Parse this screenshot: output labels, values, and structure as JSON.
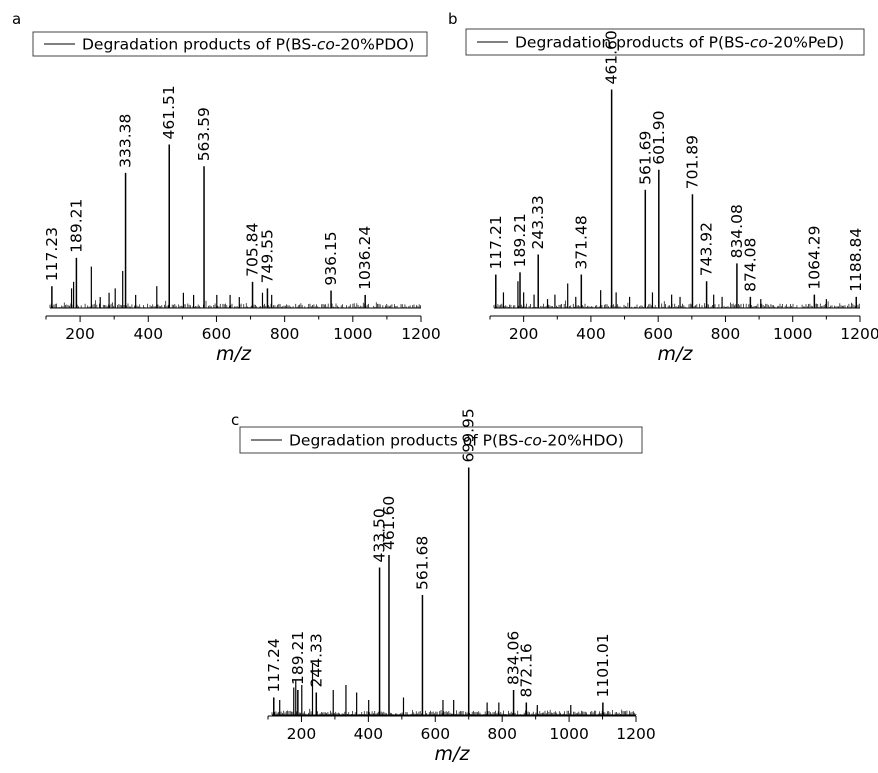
{
  "chart_data": [
    {
      "type": "line",
      "panel_label": "a",
      "legend": {
        "prefix": "Degradation products of P",
        "paren_open": "(",
        "segments": [
          {
            "text": "BS-",
            "italic": false
          },
          {
            "text": "co",
            "italic": true
          },
          {
            "text": "-20%PDO",
            "italic": false
          }
        ],
        "paren_close": ")"
      },
      "xlabel": "m/z",
      "xlim": [
        100,
        1200
      ],
      "xticks": [
        200,
        400,
        600,
        800,
        1000,
        1200
      ],
      "ylim": [
        0,
        100
      ],
      "peaks": [
        {
          "x": 117.23,
          "y": 10,
          "label": "117.23"
        },
        {
          "x": 189.21,
          "y": 23,
          "label": "189.21"
        },
        {
          "x": 333.38,
          "y": 62,
          "label": "333.38"
        },
        {
          "x": 461.51,
          "y": 75,
          "label": "461.51"
        },
        {
          "x": 563.59,
          "y": 65,
          "label": "563.59"
        },
        {
          "x": 705.84,
          "y": 12,
          "label": "705.84"
        },
        {
          "x": 749.55,
          "y": 9,
          "label": "749.55"
        },
        {
          "x": 936.15,
          "y": 8,
          "label": "936.15"
        },
        {
          "x": 1036.24,
          "y": 6,
          "label": "1036.24"
        }
      ],
      "minor_peaks": [
        {
          "x": 175,
          "y": 9
        },
        {
          "x": 181,
          "y": 12
        },
        {
          "x": 233,
          "y": 19
        },
        {
          "x": 259,
          "y": 5
        },
        {
          "x": 285,
          "y": 7
        },
        {
          "x": 303,
          "y": 9
        },
        {
          "x": 325,
          "y": 17
        },
        {
          "x": 363,
          "y": 6
        },
        {
          "x": 425,
          "y": 10
        },
        {
          "x": 503,
          "y": 7
        },
        {
          "x": 533,
          "y": 6
        },
        {
          "x": 601,
          "y": 6
        },
        {
          "x": 640,
          "y": 6
        },
        {
          "x": 667,
          "y": 5
        },
        {
          "x": 735,
          "y": 7
        },
        {
          "x": 762,
          "y": 6
        }
      ]
    },
    {
      "type": "line",
      "panel_label": "b",
      "legend": {
        "prefix": "Degradation products of P",
        "paren_open": "(",
        "segments": [
          {
            "text": "BS-",
            "italic": false
          },
          {
            "text": "co",
            "italic": true
          },
          {
            "text": "-20%PeD",
            "italic": false
          }
        ],
        "paren_close": ")"
      },
      "xlabel": "m/z",
      "xlim": [
        100,
        1200
      ],
      "xticks": [
        200,
        400,
        600,
        800,
        1000,
        1200
      ],
      "ylim": [
        0,
        100
      ],
      "peaks": [
        {
          "x": 117.21,
          "y": 15,
          "label": "117.21"
        },
        {
          "x": 189.21,
          "y": 16,
          "label": "189.21"
        },
        {
          "x": 243.33,
          "y": 24,
          "label": "243.33"
        },
        {
          "x": 371.48,
          "y": 15,
          "label": "371.48"
        },
        {
          "x": 461.6,
          "y": 98,
          "label": "461.60"
        },
        {
          "x": 561.69,
          "y": 53,
          "label": "561.69"
        },
        {
          "x": 601.9,
          "y": 62,
          "label": "601.90"
        },
        {
          "x": 701.89,
          "y": 51,
          "label": "701.89"
        },
        {
          "x": 743.92,
          "y": 12,
          "label": "743.92"
        },
        {
          "x": 834.08,
          "y": 20,
          "label": "834.08"
        },
        {
          "x": 874.08,
          "y": 5,
          "label": "874.08"
        },
        {
          "x": 1064.29,
          "y": 6,
          "label": "1064.29"
        },
        {
          "x": 1188.84,
          "y": 5,
          "label": "1188.84"
        }
      ],
      "minor_peaks": [
        {
          "x": 140,
          "y": 7
        },
        {
          "x": 183,
          "y": 12
        },
        {
          "x": 200,
          "y": 7
        },
        {
          "x": 231,
          "y": 6
        },
        {
          "x": 271,
          "y": 4
        },
        {
          "x": 293,
          "y": 6
        },
        {
          "x": 331,
          "y": 11
        },
        {
          "x": 355,
          "y": 5
        },
        {
          "x": 429,
          "y": 8
        },
        {
          "x": 475,
          "y": 7
        },
        {
          "x": 515,
          "y": 5
        },
        {
          "x": 583,
          "y": 7
        },
        {
          "x": 640,
          "y": 6
        },
        {
          "x": 665,
          "y": 5
        },
        {
          "x": 765,
          "y": 6
        },
        {
          "x": 790,
          "y": 5
        },
        {
          "x": 905,
          "y": 4
        },
        {
          "x": 1100,
          "y": 4
        }
      ]
    },
    {
      "type": "line",
      "panel_label": "c",
      "legend": {
        "prefix": "Degradation products of P",
        "paren_open": "(",
        "segments": [
          {
            "text": "BS-",
            "italic": false
          },
          {
            "text": "co",
            "italic": true
          },
          {
            "text": "-20%HDO",
            "italic": false
          }
        ],
        "paren_close": ")"
      },
      "xlabel": "m/z",
      "xlim": [
        100,
        1200
      ],
      "xticks": [
        200,
        400,
        600,
        800,
        1000,
        1200
      ],
      "ylim": [
        0,
        100
      ],
      "peaks": [
        {
          "x": 117.24,
          "y": 7,
          "label": "117.24"
        },
        {
          "x": 189.21,
          "y": 10,
          "label": "189.21"
        },
        {
          "x": 244.33,
          "y": 9,
          "label": "244.33"
        },
        {
          "x": 433.5,
          "y": 59,
          "label": "433.50"
        },
        {
          "x": 461.6,
          "y": 64,
          "label": "461.60"
        },
        {
          "x": 561.68,
          "y": 48,
          "label": "561.68"
        },
        {
          "x": 699.95,
          "y": 99,
          "label": "699.95"
        },
        {
          "x": 834.06,
          "y": 10,
          "label": "834.06"
        },
        {
          "x": 872.16,
          "y": 5,
          "label": "872.16"
        },
        {
          "x": 1101.01,
          "y": 5,
          "label": "1101.01"
        }
      ],
      "minor_peaks": [
        {
          "x": 135,
          "y": 6
        },
        {
          "x": 177,
          "y": 11
        },
        {
          "x": 183,
          "y": 14
        },
        {
          "x": 201,
          "y": 12
        },
        {
          "x": 233,
          "y": 21
        },
        {
          "x": 295,
          "y": 10
        },
        {
          "x": 333,
          "y": 12
        },
        {
          "x": 365,
          "y": 9
        },
        {
          "x": 401,
          "y": 6
        },
        {
          "x": 505,
          "y": 7
        },
        {
          "x": 623,
          "y": 6
        },
        {
          "x": 655,
          "y": 6
        },
        {
          "x": 755,
          "y": 5
        },
        {
          "x": 790,
          "y": 5
        },
        {
          "x": 905,
          "y": 4
        },
        {
          "x": 1005,
          "y": 4
        }
      ]
    }
  ]
}
